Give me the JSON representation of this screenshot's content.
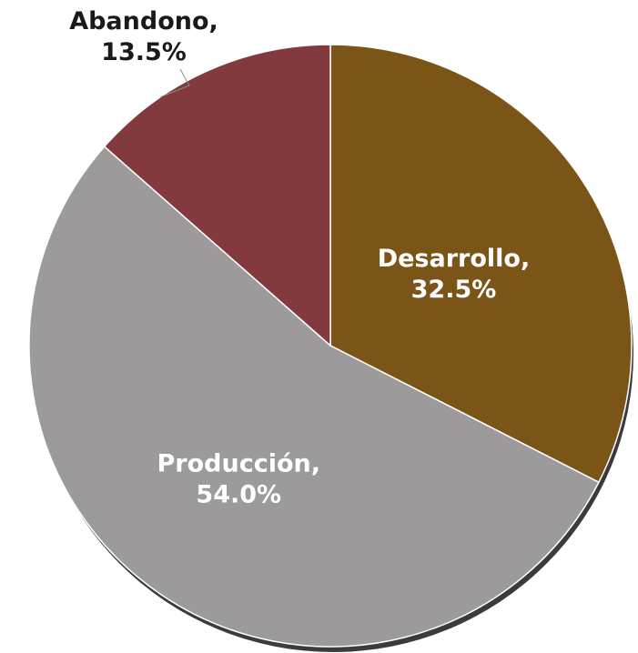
{
  "chart_data": {
    "type": "pie",
    "title": "",
    "slices": [
      {
        "label": "Desarrollo",
        "value": 32.5,
        "display": "32.5%",
        "color": "#7b5418",
        "label_color": "#ffffff"
      },
      {
        "label": "Producción",
        "value": 54.0,
        "display": "54.0%",
        "color": "#9c9a9b",
        "label_color": "#ffffff"
      },
      {
        "label": "Abandono",
        "value": 13.5,
        "display": "13.5%",
        "color": "#823a3e",
        "label_color": "#1a1a1a"
      }
    ],
    "start_angle_deg": 0,
    "direction": "clockwise",
    "legend": "none"
  }
}
